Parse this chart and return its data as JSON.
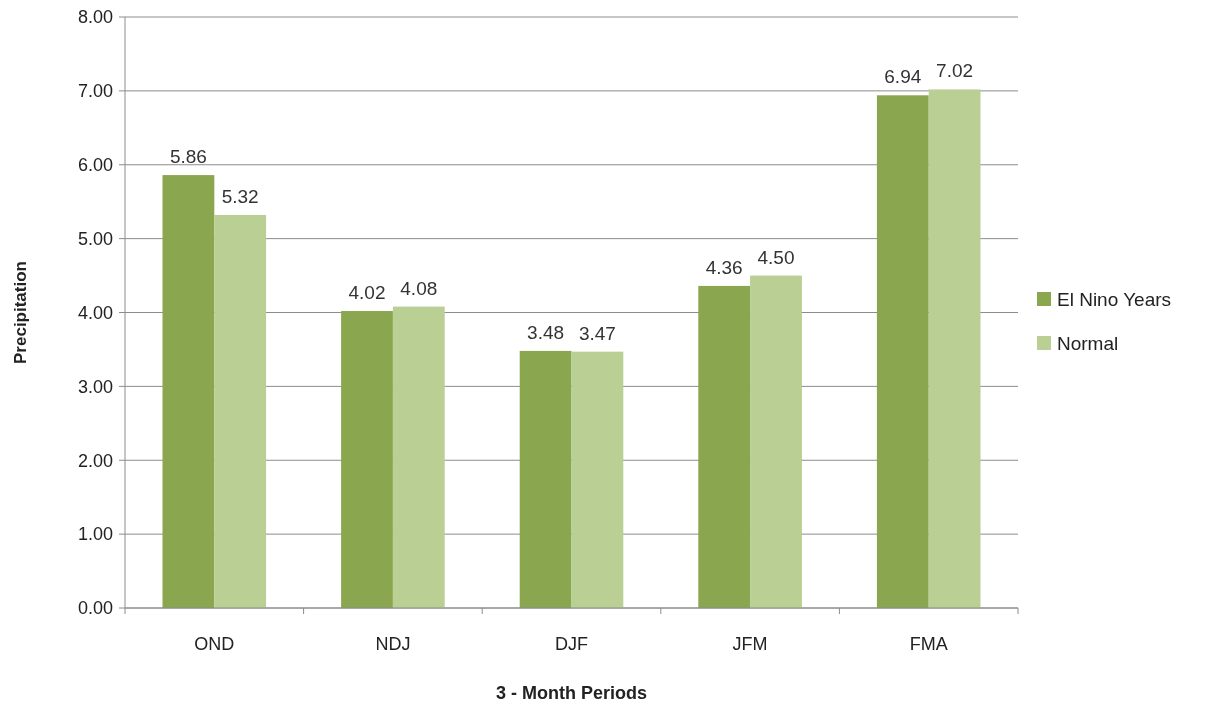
{
  "chart_data": {
    "type": "bar",
    "xlabel": "3 - Month Periods",
    "ylabel": "Precipitation",
    "categories": [
      "OND",
      "NDJ",
      "DJF",
      "JFM",
      "FMA"
    ],
    "series": [
      {
        "name": "El Nino Years",
        "color": "#8aa64f",
        "values": [
          5.86,
          4.02,
          3.48,
          4.36,
          6.94
        ],
        "value_labels": [
          "5.86",
          "4.02",
          "3.48",
          "4.36",
          "6.94"
        ]
      },
      {
        "name": "Normal",
        "color": "#b9cf94",
        "values": [
          5.32,
          4.08,
          3.47,
          4.5,
          7.02
        ],
        "value_labels": [
          "5.32",
          "4.08",
          "3.47",
          "4.50",
          "7.02"
        ]
      }
    ],
    "ylim": [
      0,
      8
    ],
    "yticks": [
      {
        "value": 0,
        "label": "0.00"
      },
      {
        "value": 1,
        "label": "1.00"
      },
      {
        "value": 2,
        "label": "2.00"
      },
      {
        "value": 3,
        "label": "3.00"
      },
      {
        "value": 4,
        "label": "4.00"
      },
      {
        "value": 5,
        "label": "5.00"
      },
      {
        "value": 6,
        "label": "6.00"
      },
      {
        "value": 7,
        "label": "7.00"
      },
      {
        "value": 8,
        "label": "8.00"
      }
    ],
    "grid": "y",
    "legend": "right"
  }
}
